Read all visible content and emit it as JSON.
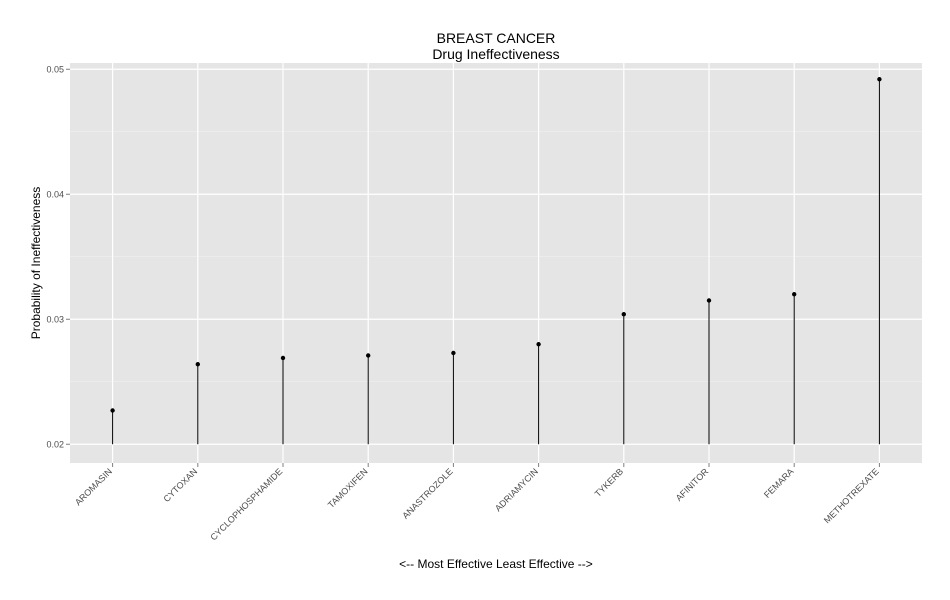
{
  "chart_data": {
    "type": "lollipop",
    "title": "BREAST CANCER",
    "subtitle": "Drug Ineffectiveness",
    "xlabel": "<-- Most Effective     Least Effective -->",
    "ylabel": "Probability of Ineffectiveness",
    "categories": [
      "AROMASIN",
      "CYTOXAN",
      "CYCLOPHOSPHAMIDE",
      "TAMOXIFEN",
      "ANASTROZOLE",
      "ADRIAMYCIN",
      "TYKERB",
      "AFINITOR",
      "FEMARA",
      "METHOTREXATE"
    ],
    "values": [
      0.0227,
      0.0264,
      0.0269,
      0.0271,
      0.0273,
      0.028,
      0.0304,
      0.0315,
      0.032,
      0.0492
    ],
    "baseline": 0.02,
    "ylim": [
      0.0185,
      0.0505
    ],
    "yticks": [
      0.02,
      0.03,
      0.04,
      0.05
    ],
    "ytick_labels": [
      "0.02",
      "0.03",
      "0.04",
      "0.05"
    ],
    "grid": true,
    "legend": "none"
  },
  "colors": {
    "panel": "#e5e5e5",
    "grid": "#ffffff",
    "mark": "#000000",
    "tick_text": "#4d4d4d"
  }
}
